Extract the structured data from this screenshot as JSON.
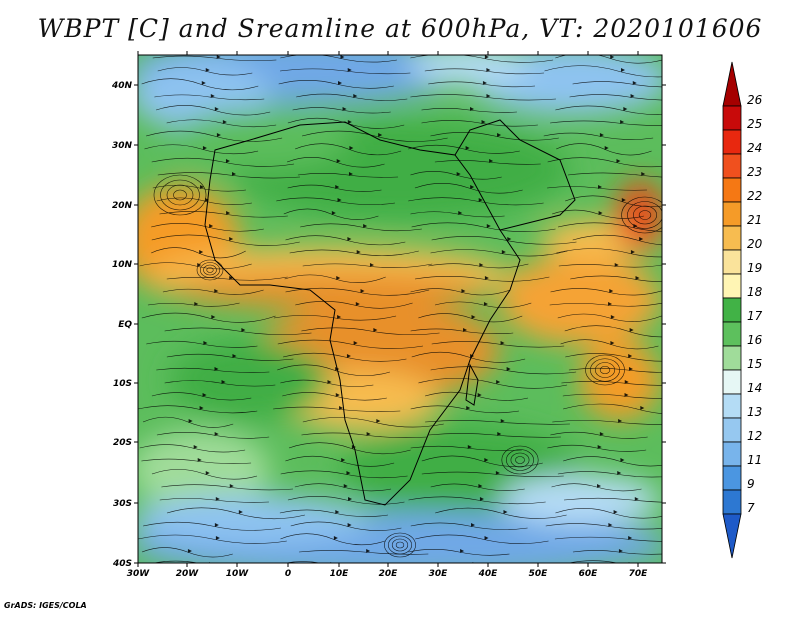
{
  "title": "WBPT [C] and Sreamline at 600hPa, VT: 2020101606",
  "credit": "GrADS: IGES/COLA",
  "map": {
    "lat_ticks": [
      "40N",
      "30N",
      "20N",
      "10N",
      "EQ",
      "10S",
      "20S",
      "30S",
      "40S"
    ],
    "lon_ticks": [
      "30W",
      "20W",
      "10W",
      "0",
      "10E",
      "20E",
      "30E",
      "40E",
      "50E",
      "60E",
      "70E"
    ]
  },
  "colorbar": {
    "labels": [
      "26",
      "25",
      "24",
      "23",
      "22",
      "21",
      "20",
      "19",
      "18",
      "17",
      "16",
      "15",
      "14",
      "13",
      "12",
      "11",
      "9",
      "7"
    ],
    "colors": [
      "#a50000",
      "#c80a0a",
      "#e8280f",
      "#f0501e",
      "#f57814",
      "#f59b28",
      "#f7bc50",
      "#fae39b",
      "#fff5b4",
      "#41b246",
      "#5dc05d",
      "#a0dc9a",
      "#e6f7f5",
      "#b4dcf5",
      "#96c8f0",
      "#78b4eb",
      "#4b96e1",
      "#2d78d2",
      "#1e5ac8"
    ]
  }
}
